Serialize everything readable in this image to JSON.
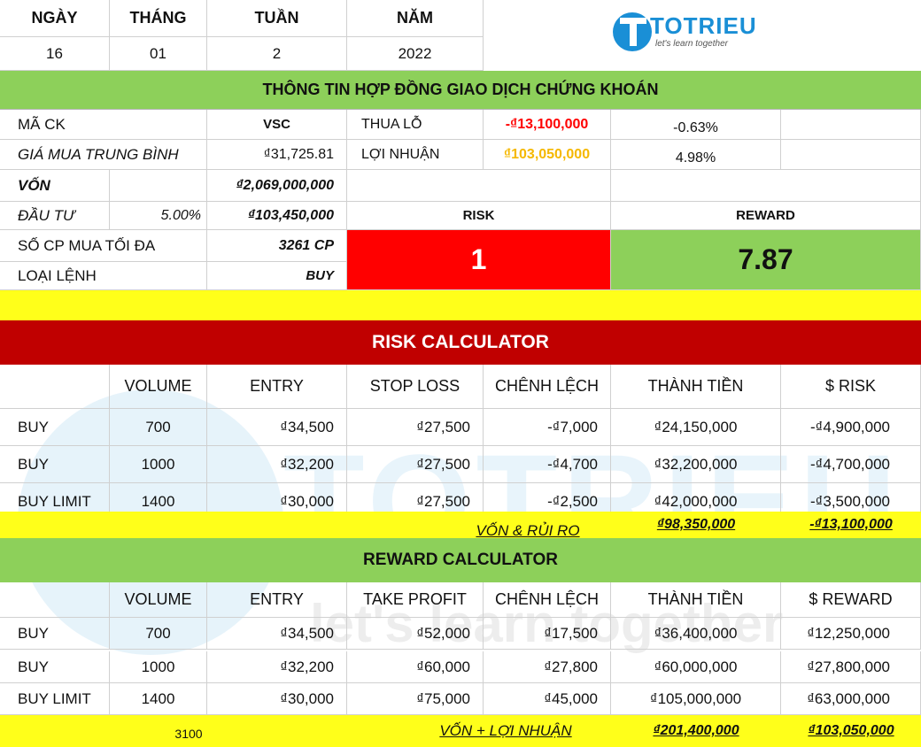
{
  "date_header": {
    "labels": [
      "NGÀY",
      "THÁNG",
      "TUẦN",
      "NĂM"
    ],
    "values": [
      "16",
      "01",
      "2",
      "2022"
    ]
  },
  "logo": {
    "brand": "TOTRIEU",
    "tagline": "let's learn together"
  },
  "contract_title": "THÔNG TIN HỢP ĐỒNG GIAO DỊCH CHỨNG KHOÁN",
  "info": {
    "ma_ck_label": "MÃ CK",
    "ma_ck_value": "VSC",
    "gia_label": "GIÁ MUA TRUNG BÌNH",
    "gia_value": "₫31,725.81",
    "von_label": "VỐN",
    "von_value": "₫2,069,000,000",
    "dau_tu_label": "ĐẦU TƯ",
    "dau_tu_pct": "5.00%",
    "dau_tu_value": "₫103,450,000",
    "so_cp_label": "SỐ CP MUA TỐI ĐA",
    "so_cp_value": "3261 CP",
    "loai_lenh_label": "LOẠI LỆNH",
    "loai_lenh_value": "BUY",
    "thua_lo_label": "THUA LỖ",
    "thua_lo_value": "-₫13,100,000",
    "thua_lo_pct": "-0.63%",
    "loi_nhuan_label": "LỢI NHUẬN",
    "loi_nhuan_value": "₫103,050,000",
    "loi_nhuan_pct": "4.98%",
    "risk_label": "RISK",
    "risk_value": "1",
    "reward_label": "REWARD",
    "reward_value": "7.87"
  },
  "risk_calc": {
    "title": "RISK CALCULATOR",
    "headers": [
      "",
      "VOLUME",
      "ENTRY",
      "STOP LOSS",
      "CHÊNH LỆCH",
      "THÀNH TIỀN",
      "$ RISK"
    ],
    "rows": [
      [
        "BUY",
        "700",
        "₫34,500",
        "₫27,500",
        "-₫7,000",
        "₫24,150,000",
        "-₫4,900,000"
      ],
      [
        "BUY",
        "1000",
        "₫32,200",
        "₫27,500",
        "-₫4,700",
        "₫32,200,000",
        "-₫4,700,000"
      ],
      [
        "BUY LIMIT",
        "1400",
        "₫30,000",
        "₫27,500",
        "-₫2,500",
        "₫42,000,000",
        "-₫3,500,000"
      ]
    ],
    "total_label": "VỐN & RỦI RO",
    "total_amount": "₫98,350,000",
    "total_risk": "-₫13,100,000"
  },
  "reward_calc": {
    "title": "REWARD CALCULATOR",
    "headers": [
      "",
      "VOLUME",
      "ENTRY",
      "TAKE PROFIT",
      "CHÊNH LỆCH",
      "THÀNH TIỀN",
      "$ REWARD"
    ],
    "rows": [
      [
        "BUY",
        "700",
        "₫34,500",
        "₫52,000",
        "₫17,500",
        "₫36,400,000",
        "₫12,250,000"
      ],
      [
        "BUY",
        "1000",
        "₫32,200",
        "₫60,000",
        "₫27,800",
        "₫60,000,000",
        "₫27,800,000"
      ],
      [
        "BUY LIMIT",
        "1400",
        "₫30,000",
        "₫75,000",
        "₫45,000",
        "₫105,000,000",
        "₫63,000,000"
      ]
    ],
    "total_volume": "3100",
    "total_label": "VỐN + LỢI NHUẬN",
    "total_amount": "₫201,400,000",
    "total_reward": "₫103,050,000"
  },
  "colors": {
    "green": "#8dd05a",
    "yellow": "#ffff1a",
    "red": "#ff0000",
    "dark_red": "#c00000",
    "loss_text": "#ff0000",
    "profit_text": "#f5b800",
    "logo_blue": "#1a8fd6"
  },
  "watermark": {
    "brand": "TOTRIEU",
    "tagline": "let's learn together"
  }
}
